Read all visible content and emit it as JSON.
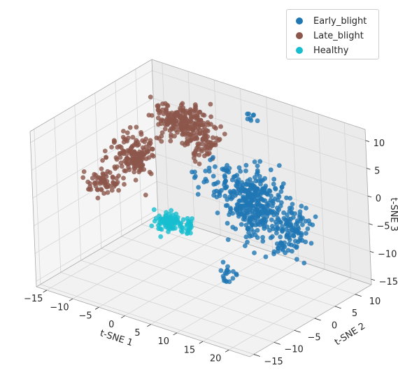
{
  "chart_data": {
    "type": "scatter",
    "projection": "3d",
    "title": "",
    "xlabel": "t-SNE 1",
    "ylabel": "t-SNE 2",
    "zlabel": "t-SNE 3",
    "xlim": [
      -17,
      24
    ],
    "ylim": [
      -16,
      14
    ],
    "zlim": [
      -16,
      12
    ],
    "xticks": [
      "−15",
      "−10",
      "−5",
      "0",
      "5",
      "10",
      "15",
      "20"
    ],
    "yticks": [
      "−15",
      "−10",
      "−5",
      "0",
      "5",
      "10"
    ],
    "zticks": [
      "−15",
      "−10",
      "−5",
      "0",
      "5",
      "10"
    ],
    "grid": true,
    "legend_position": "top-right",
    "series": [
      {
        "name": "Early_blight",
        "color": "#1f77b4",
        "clusters": [
          {
            "center": [
              11,
              2,
              1
            ],
            "spread": [
              4.5,
              3.5,
              4
            ],
            "count": 260
          },
          {
            "center": [
              16,
              4,
              -4
            ],
            "spread": [
              3.5,
              3,
              4
            ],
            "count": 140
          },
          {
            "center": [
              15,
              -3,
              0
            ],
            "spread": [
              3,
              2.5,
              3
            ],
            "count": 60
          },
          {
            "center": [
              6,
              0,
              4
            ],
            "spread": [
              2.5,
              2.5,
              3
            ],
            "count": 30
          },
          {
            "center": [
              5,
              10,
              10
            ],
            "spread": [
              1.5,
              1,
              1
            ],
            "count": 8
          },
          {
            "center": [
              12,
              -6,
              -10
            ],
            "spread": [
              1.5,
              1.5,
              2
            ],
            "count": 18
          }
        ]
      },
      {
        "name": "Late_blight",
        "color": "#8c564b",
        "clusters": [
          {
            "center": [
              -5,
              6,
              8
            ],
            "spread": [
              4,
              3,
              2.5
            ],
            "count": 200
          },
          {
            "center": [
              -11,
              1,
              2
            ],
            "spread": [
              3,
              3,
              3
            ],
            "count": 160
          },
          {
            "center": [
              -14,
              -3,
              -2
            ],
            "spread": [
              2,
              2,
              2
            ],
            "count": 60
          },
          {
            "center": [
              -3,
              8,
              4
            ],
            "spread": [
              3,
              2,
              3
            ],
            "count": 80
          }
        ]
      },
      {
        "name": "Healthy",
        "color": "#17becf",
        "clusters": [
          {
            "center": [
              -2,
              -2,
              -6
            ],
            "spread": [
              2,
              1.5,
              1.5
            ],
            "count": 80
          },
          {
            "center": [
              1,
              -1,
              -6
            ],
            "spread": [
              1,
              1,
              1
            ],
            "count": 20
          }
        ]
      }
    ]
  }
}
